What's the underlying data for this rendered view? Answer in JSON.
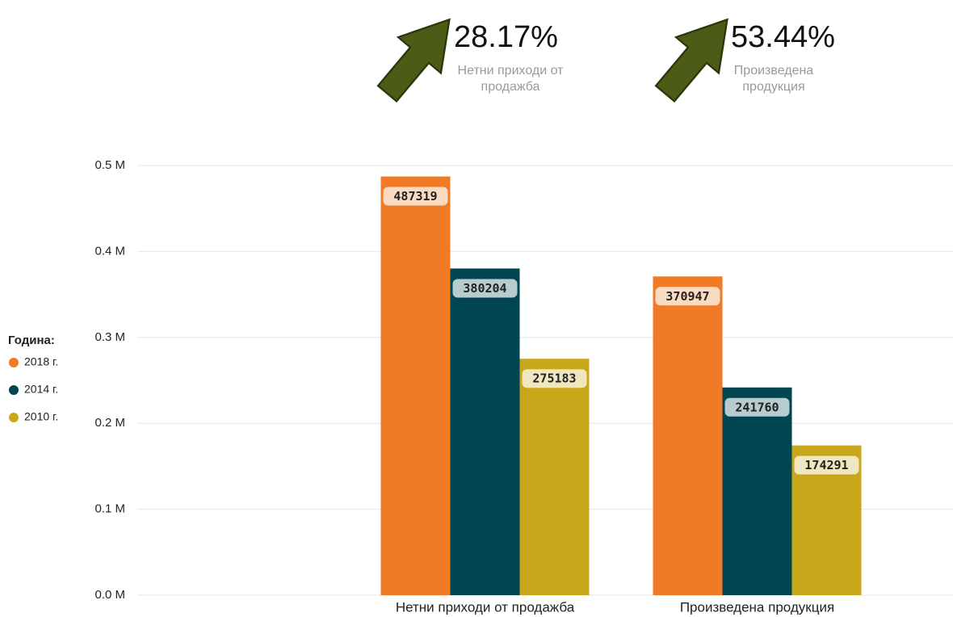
{
  "kpis": [
    {
      "value": "28.17%",
      "label": "Нетни приходи от продажба"
    },
    {
      "value": "53.44%",
      "label": "Произведена продукция"
    }
  ],
  "chart_data": {
    "type": "bar",
    "categories": [
      "Нетни приходи от продажба",
      "Произведена продукция"
    ],
    "series": [
      {
        "name": "2018 г.",
        "color": "#f07a26",
        "values": [
          487319,
          370947
        ]
      },
      {
        "name": "2014 г.",
        "color": "#004550",
        "values": [
          380204,
          241760
        ]
      },
      {
        "name": "2010 г.",
        "color": "#c8a81a",
        "values": [
          275183,
          174291
        ]
      }
    ],
    "legend_title": "Година:",
    "legend_position": "left",
    "ylim": [
      0,
      500000
    ],
    "yticks": [
      {
        "value": 0,
        "label": "0.0 M"
      },
      {
        "value": 100000,
        "label": "0.1 M"
      },
      {
        "value": 200000,
        "label": "0.2 M"
      },
      {
        "value": 300000,
        "label": "0.3 M"
      },
      {
        "value": 400000,
        "label": "0.4 M"
      },
      {
        "value": 500000,
        "label": "0.5 M"
      }
    ],
    "grid": true
  }
}
